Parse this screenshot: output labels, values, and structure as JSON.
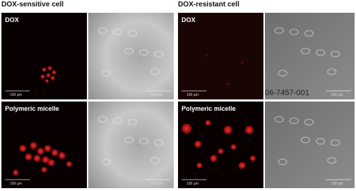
{
  "headings": [
    "DOX-sensitive cell",
    "DOX-resistant cell"
  ],
  "panels": [
    {
      "label": "DOX",
      "scale_bars": [
        "100 µm",
        "100 µm"
      ]
    },
    {
      "label": "DOX",
      "scale_bars": [
        "100 µm",
        "100 µm"
      ]
    },
    {
      "label": "Polymeric micelle",
      "scale_bars": [
        "100 µm",
        "100 µm"
      ]
    },
    {
      "label": "Polymeric micelle",
      "scale_bars": [
        "100 µm",
        "100 µm"
      ]
    }
  ],
  "watermark": "06-7457-001"
}
